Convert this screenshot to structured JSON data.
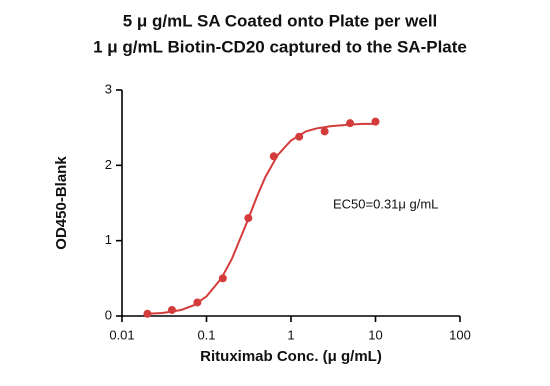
{
  "chart_data": {
    "type": "scatter",
    "title": [
      "5 μ g/mL SA Coated onto Plate per well",
      "1 μ g/mL Biotin-CD20 captured to the SA-Plate"
    ],
    "x_label": "Rituximab Conc. (μ g/mL)",
    "y_label": "OD450-Blank",
    "annotation": "EC50=0.31μ g/mL",
    "x_scale": "log",
    "xlim": [
      0.01,
      100
    ],
    "xticks": [
      0.01,
      0.1,
      1,
      10,
      100
    ],
    "ylim": [
      0,
      3
    ],
    "yticks": [
      0,
      1,
      2,
      3
    ],
    "grid": false,
    "color": "#d43c3c",
    "x": [
      0.02,
      0.039,
      0.078,
      0.156,
      0.3125,
      0.625,
      1.25,
      2.5,
      5,
      10
    ],
    "values": [
      0.03,
      0.08,
      0.18,
      0.5,
      1.3,
      2.12,
      2.38,
      2.45,
      2.56,
      2.58
    ],
    "fit": {
      "color": "#d43c3c",
      "x": [
        0.02,
        0.03,
        0.05,
        0.07,
        0.1,
        0.15,
        0.2,
        0.3,
        0.4,
        0.5,
        0.7,
        1,
        1.5,
        2,
        3,
        5,
        7,
        10
      ],
      "y": [
        0.03,
        0.04,
        0.08,
        0.14,
        0.26,
        0.5,
        0.76,
        1.24,
        1.6,
        1.85,
        2.14,
        2.33,
        2.45,
        2.49,
        2.52,
        2.54,
        2.55,
        2.55
      ]
    }
  }
}
